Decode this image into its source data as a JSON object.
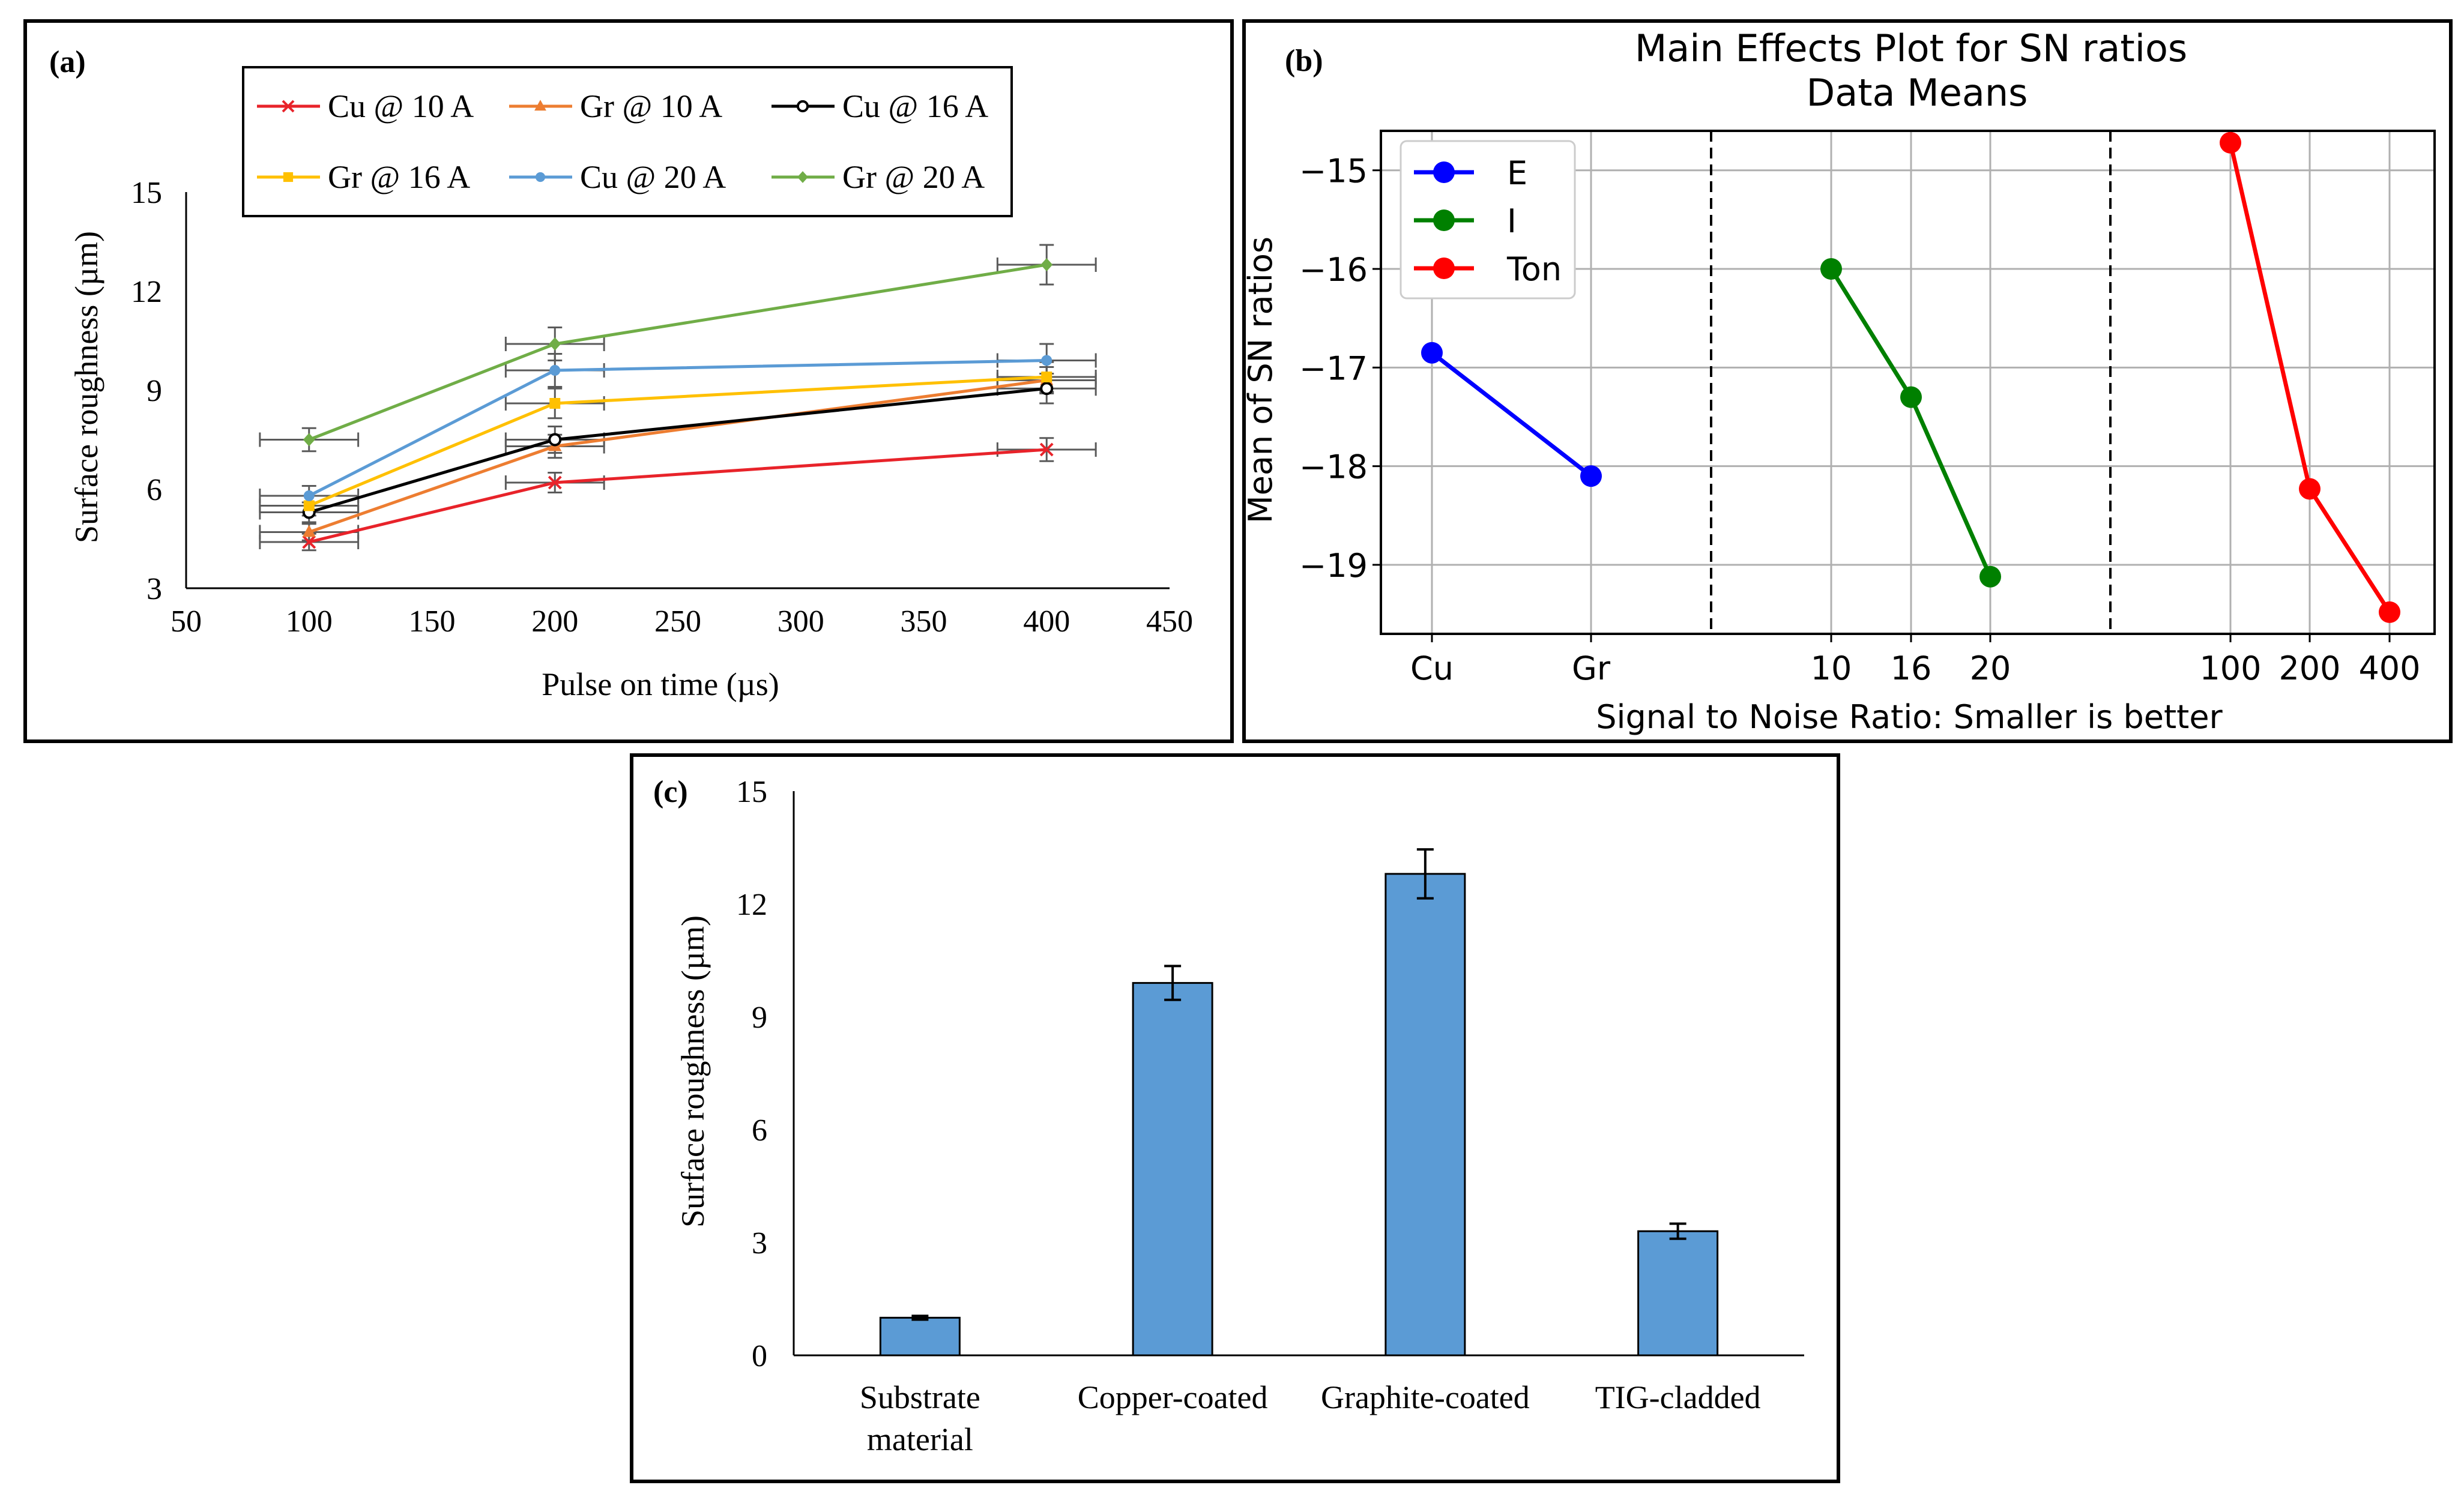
{
  "colors": {
    "cu10": "#e8232a",
    "gr10": "#ed7d31",
    "cu16": "#000000",
    "gr16": "#ffc000",
    "cu20": "#5b9bd5",
    "gr20": "#70ad47",
    "E": "#0000ff",
    "I": "#008000",
    "Ton": "#ff0000",
    "bar": "#5b9bd5",
    "errbar": "#5a5a5a"
  },
  "chart_data": [
    {
      "panel": "a",
      "panel_label": "(a)",
      "type": "line",
      "title": "",
      "xlabel": "Pulse on time (µs)",
      "ylabel": "Surface roughness (µm)",
      "xlim": [
        50,
        450
      ],
      "ylim": [
        3,
        15
      ],
      "xticks": [
        50,
        100,
        150,
        200,
        250,
        300,
        350,
        400,
        450
      ],
      "yticks": [
        3,
        6,
        9,
        12,
        15
      ],
      "x_error": 20,
      "x": [
        100,
        200,
        400
      ],
      "legend_position": "top",
      "series": [
        {
          "name": "Cu @ 10 A",
          "color_key": "cu10",
          "marker": "x",
          "values": [
            4.4,
            6.2,
            7.2
          ],
          "yerr": [
            0.25,
            0.3,
            0.35
          ]
        },
        {
          "name": "Gr @ 10 A",
          "color_key": "gr10",
          "marker": "triangle",
          "values": [
            4.7,
            7.3,
            9.3
          ],
          "yerr": [
            0.25,
            0.35,
            0.4
          ]
        },
        {
          "name": "Cu @ 16 A",
          "color_key": "cu16",
          "marker": "circle-open",
          "values": [
            5.3,
            7.5,
            9.05
          ],
          "yerr": [
            0.3,
            0.4,
            0.45
          ]
        },
        {
          "name": "Gr @ 16 A",
          "color_key": "gr16",
          "marker": "square",
          "values": [
            5.5,
            8.6,
            9.4
          ],
          "yerr": [
            0.3,
            0.45,
            0.45
          ]
        },
        {
          "name": "Cu @ 20 A",
          "color_key": "cu20",
          "marker": "circle",
          "values": [
            5.8,
            9.6,
            9.9
          ],
          "yerr": [
            0.3,
            0.5,
            0.5
          ]
        },
        {
          "name": "Gr @ 20 A",
          "color_key": "gr20",
          "marker": "diamond",
          "values": [
            7.5,
            10.4,
            12.8
          ],
          "yerr": [
            0.35,
            0.5,
            0.6
          ]
        }
      ]
    },
    {
      "panel": "b",
      "panel_label": "(b)",
      "type": "line",
      "title": "Main Effects Plot for SN ratios",
      "subtitle": "Data Means",
      "xlabel": "Signal to Noise Ratio: Smaller is better",
      "ylabel": "Mean of SN ratios",
      "ylim": [
        -19.7,
        -14.6
      ],
      "yticks": [
        -15,
        -16,
        -17,
        -18,
        -19
      ],
      "ytick_labels": [
        "−15",
        "−16",
        "−17",
        "−18",
        "−19"
      ],
      "legend_position": "top-left",
      "groups": [
        {
          "name": "E",
          "color_key": "E",
          "categories": [
            "Cu",
            "Gr"
          ],
          "values": [
            -16.85,
            -18.1
          ]
        },
        {
          "name": "I",
          "color_key": "I",
          "categories": [
            "10",
            "16",
            "20"
          ],
          "values": [
            -16.0,
            -17.3,
            -19.12
          ]
        },
        {
          "name": "Ton",
          "color_key": "Ton",
          "categories": [
            "100",
            "200",
            "400"
          ],
          "values": [
            -14.72,
            -18.23,
            -19.48
          ]
        }
      ]
    },
    {
      "panel": "c",
      "panel_label": "(c)",
      "type": "bar",
      "title": "",
      "xlabel": "",
      "ylabel": "Surface roughness (µm)",
      "ylim": [
        0,
        15
      ],
      "yticks": [
        0,
        3,
        6,
        9,
        12,
        15
      ],
      "categories": [
        {
          "line1": "Substrate",
          "line2": "material"
        },
        {
          "line1": "Copper-coated",
          "line2": ""
        },
        {
          "line1": "Graphite-coated",
          "line2": ""
        },
        {
          "line1": "TIG-cladded",
          "line2": ""
        }
      ],
      "values": [
        1.0,
        9.9,
        12.8,
        3.3
      ],
      "yerr": [
        0.05,
        0.45,
        0.65,
        0.2
      ]
    }
  ]
}
